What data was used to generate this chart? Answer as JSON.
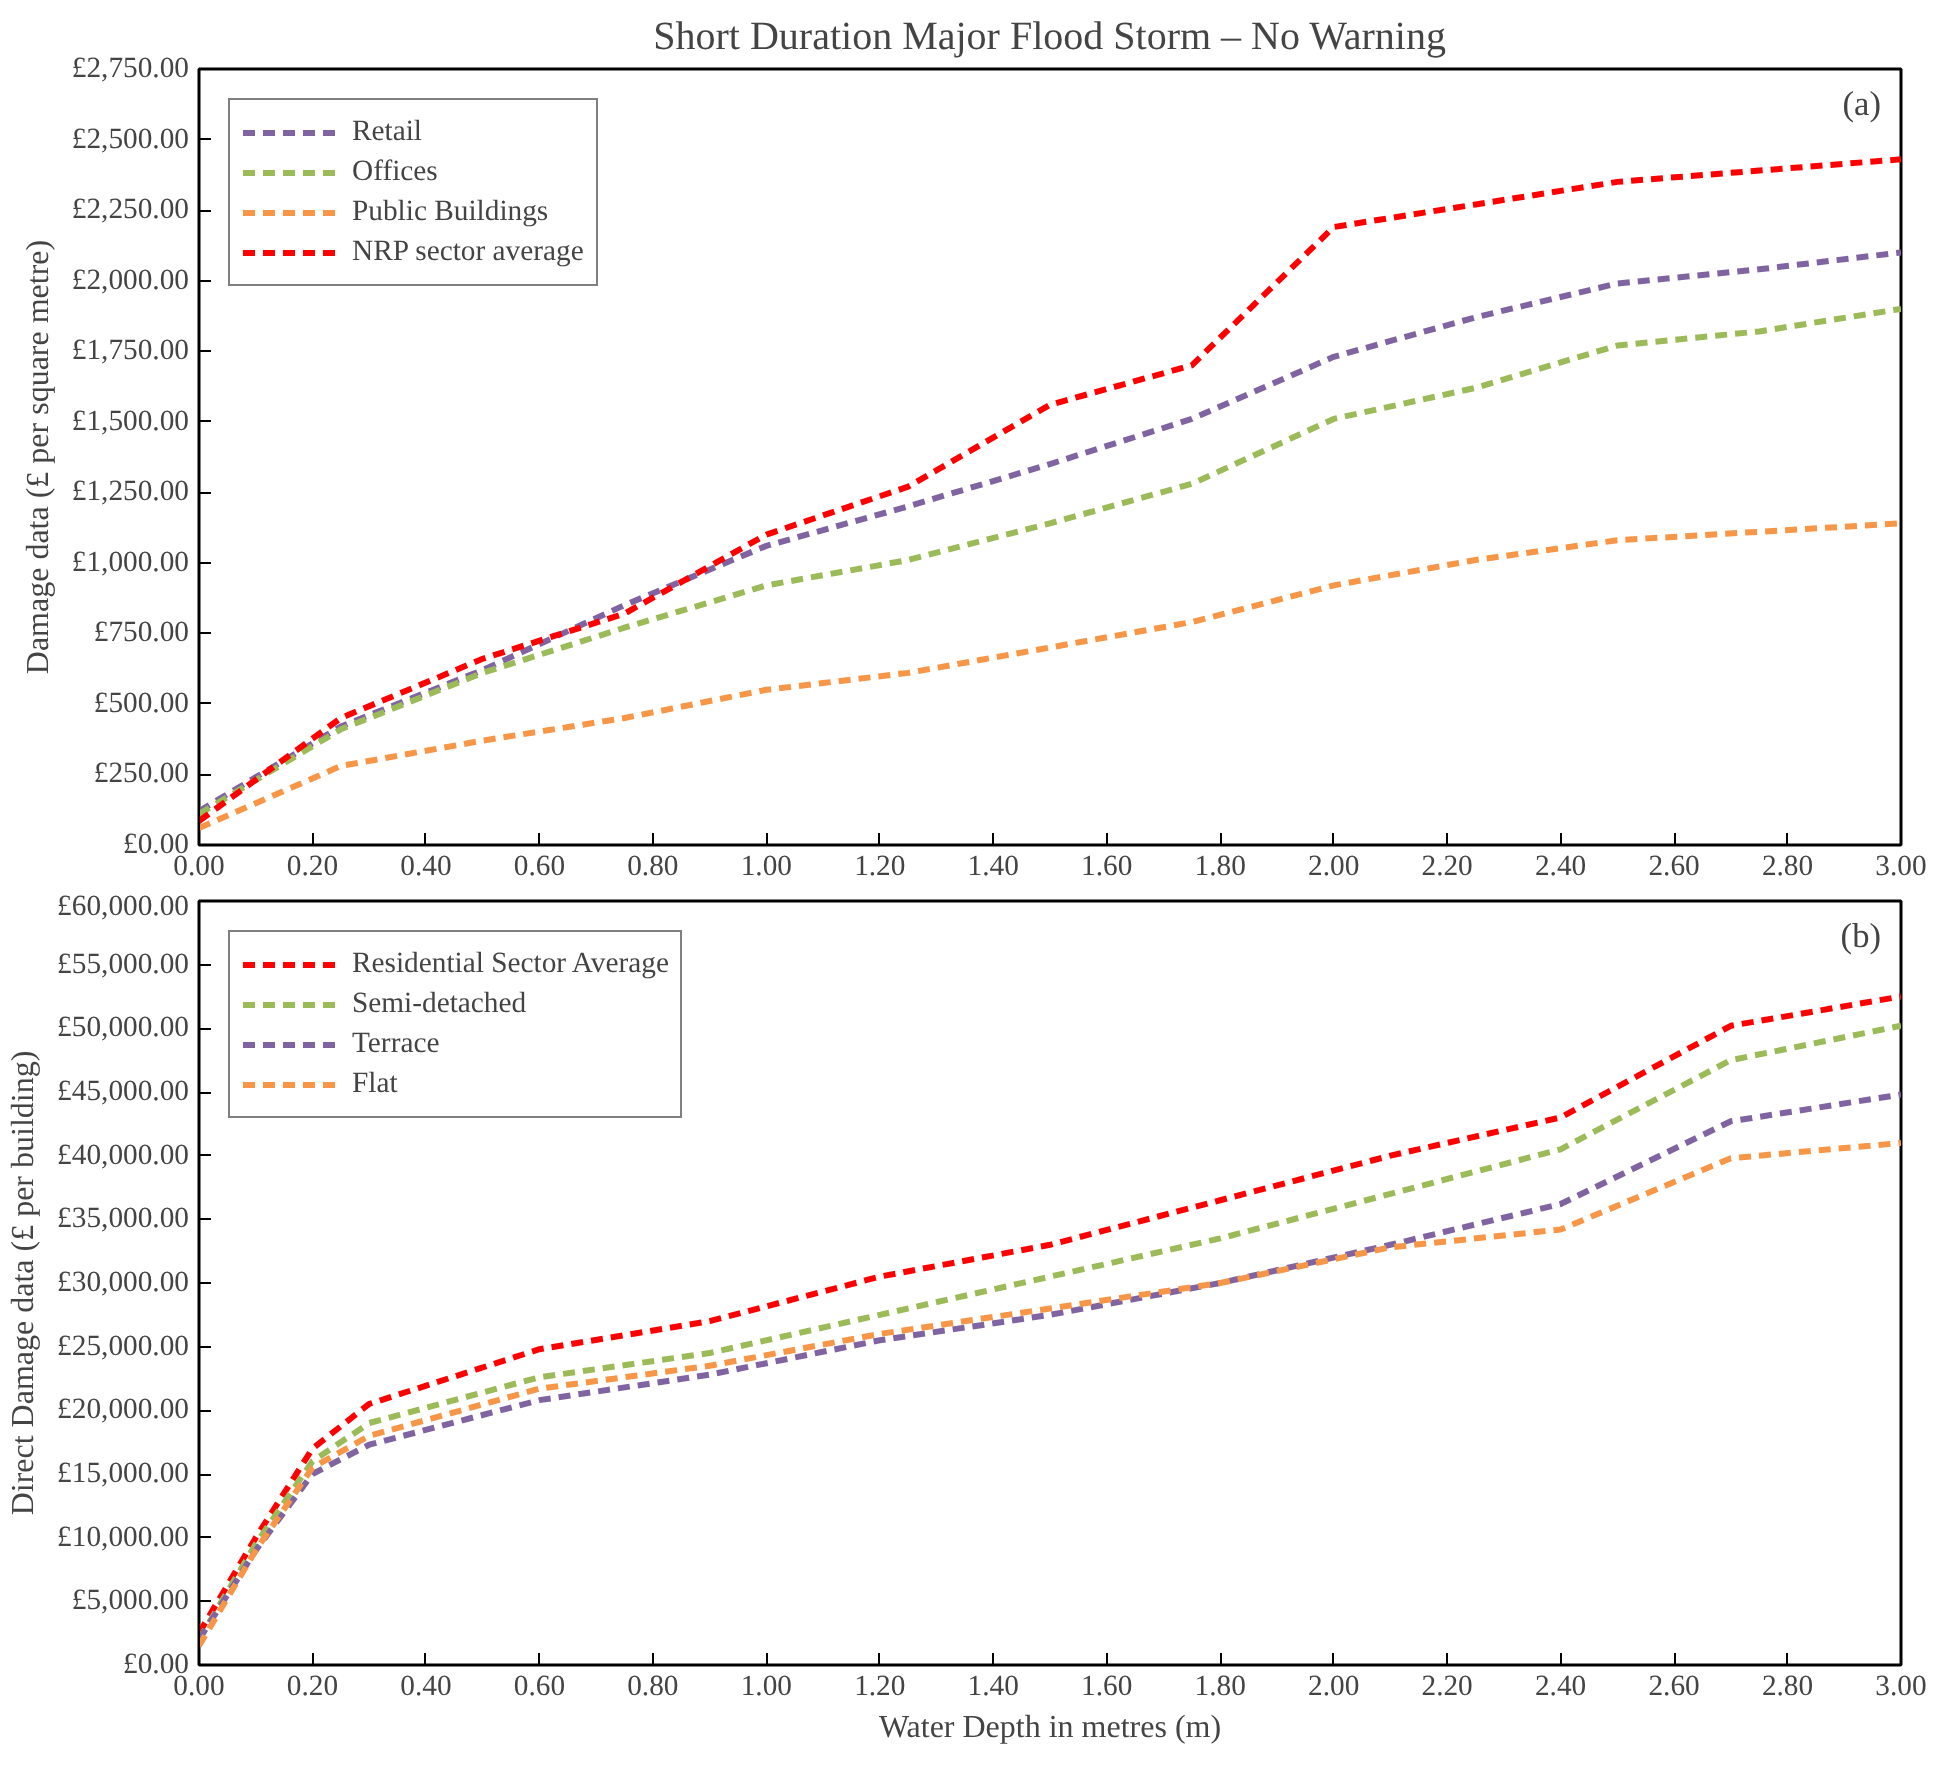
{
  "chart_data": [
    {
      "type": "line",
      "title": "Short Duration Major Flood Storm – No Warning",
      "ylabel": "Damage data (£ per square metre)",
      "annotations": [
        "(a)"
      ],
      "x": [
        0,
        0.25,
        0.5,
        0.75,
        1.0,
        1.25,
        1.5,
        1.75,
        2.0,
        2.25,
        2.5,
        2.75,
        3.0
      ],
      "series": [
        {
          "name": "Retail",
          "color": "#8064a2",
          "values": [
            120,
            420,
            620,
            850,
            1060,
            1200,
            1350,
            1510,
            1730,
            1870,
            1990,
            2040,
            2100
          ]
        },
        {
          "name": "Offices",
          "color": "#9bbb59",
          "values": [
            110,
            410,
            610,
            770,
            920,
            1010,
            1140,
            1280,
            1510,
            1620,
            1770,
            1820,
            1900
          ]
        },
        {
          "name": "Public Buildings",
          "color": "#f79646",
          "values": [
            60,
            280,
            370,
            450,
            550,
            610,
            700,
            790,
            920,
            1010,
            1080,
            1110,
            1140
          ]
        },
        {
          "name": "NRP sector average",
          "color": "#ff0000",
          "values": [
            85,
            450,
            660,
            820,
            1100,
            1270,
            1560,
            1700,
            2190,
            2270,
            2350,
            2390,
            2430
          ]
        }
      ],
      "xlim": [
        0,
        3
      ],
      "xticks": [
        {
          "value": 0,
          "label": "0.00"
        },
        {
          "value": 0.2,
          "label": "0.20"
        },
        {
          "value": 0.4,
          "label": "0.40"
        },
        {
          "value": 0.6,
          "label": "0.60"
        },
        {
          "value": 0.8,
          "label": "0.80"
        },
        {
          "value": 1.0,
          "label": "1.00"
        },
        {
          "value": 1.2,
          "label": "1.20"
        },
        {
          "value": 1.4,
          "label": "1.40"
        },
        {
          "value": 1.6,
          "label": "1.60"
        },
        {
          "value": 1.8,
          "label": "1.80"
        },
        {
          "value": 2.0,
          "label": "2.00"
        },
        {
          "value": 2.2,
          "label": "2.20"
        },
        {
          "value": 2.4,
          "label": "2.40"
        },
        {
          "value": 2.6,
          "label": "2.60"
        },
        {
          "value": 2.8,
          "label": "2.80"
        },
        {
          "value": 3.0,
          "label": "3.00"
        }
      ],
      "ylim": [
        0,
        2750
      ],
      "yticks": [
        {
          "value": 0,
          "label": "£0.00"
        },
        {
          "value": 250,
          "label": "£250.00"
        },
        {
          "value": 500,
          "label": "£500.00"
        },
        {
          "value": 750,
          "label": "£750.00"
        },
        {
          "value": 1000,
          "label": "£1,000.00"
        },
        {
          "value": 1250,
          "label": "£1,250.00"
        },
        {
          "value": 1500,
          "label": "£1,500.00"
        },
        {
          "value": 1750,
          "label": "£1,750.00"
        },
        {
          "value": 2000,
          "label": "£2,000.00"
        },
        {
          "value": 2250,
          "label": "£2,250.00"
        },
        {
          "value": 2500,
          "label": "£2,500.00"
        },
        {
          "value": 2750,
          "label": "£2,750.00"
        }
      ],
      "grid": false,
      "legend": "top left",
      "line_style": "dashed",
      "marker": "none"
    },
    {
      "type": "line",
      "xlabel": "Water Depth in metres (m)",
      "ylabel": "Direct Damage data (£ per building)",
      "annotations": [
        "(b)"
      ],
      "x": [
        0,
        0.1,
        0.2,
        0.3,
        0.6,
        0.9,
        1.2,
        1.5,
        1.8,
        2.1,
        2.4,
        2.7,
        3.0
      ],
      "series": [
        {
          "name": "Residential Sector Average",
          "color": "#ff0000",
          "values": [
            2500,
            10000,
            17000,
            20500,
            24800,
            27000,
            30500,
            33000,
            36500,
            40000,
            43000,
            50200,
            52500
          ]
        },
        {
          "name": "Semi-detached",
          "color": "#9bbb59",
          "values": [
            2000,
            9500,
            16000,
            19000,
            22600,
            24500,
            27500,
            30500,
            33500,
            37000,
            40500,
            47500,
            50200
          ]
        },
        {
          "name": "Terrace",
          "color": "#8064a2",
          "values": [
            2000,
            9000,
            15000,
            17300,
            20800,
            22800,
            25500,
            27500,
            30000,
            33000,
            36200,
            42700,
            44800
          ]
        },
        {
          "name": "Flat",
          "color": "#f79646",
          "values": [
            1500,
            9000,
            15500,
            18000,
            21700,
            23500,
            26000,
            28000,
            30000,
            32800,
            34200,
            39800,
            41000
          ]
        }
      ],
      "xlim": [
        0,
        3
      ],
      "xticks": [
        {
          "value": 0,
          "label": "0.00"
        },
        {
          "value": 0.2,
          "label": "0.20"
        },
        {
          "value": 0.4,
          "label": "0.40"
        },
        {
          "value": 0.6,
          "label": "0.60"
        },
        {
          "value": 0.8,
          "label": "0.80"
        },
        {
          "value": 1.0,
          "label": "1.00"
        },
        {
          "value": 1.2,
          "label": "1.20"
        },
        {
          "value": 1.4,
          "label": "1.40"
        },
        {
          "value": 1.6,
          "label": "1.60"
        },
        {
          "value": 1.8,
          "label": "1.80"
        },
        {
          "value": 2.0,
          "label": "2.00"
        },
        {
          "value": 2.2,
          "label": "2.20"
        },
        {
          "value": 2.4,
          "label": "2.40"
        },
        {
          "value": 2.6,
          "label": "2.60"
        },
        {
          "value": 2.8,
          "label": "2.80"
        },
        {
          "value": 3.0,
          "label": "3.00"
        }
      ],
      "ylim": [
        0,
        60000
      ],
      "yticks": [
        {
          "value": 0,
          "label": "£0.00"
        },
        {
          "value": 5000,
          "label": "£5,000.00"
        },
        {
          "value": 10000,
          "label": "£10,000.00"
        },
        {
          "value": 15000,
          "label": "£15,000.00"
        },
        {
          "value": 20000,
          "label": "£20,000.00"
        },
        {
          "value": 25000,
          "label": "£25,000.00"
        },
        {
          "value": 30000,
          "label": "£30,000.00"
        },
        {
          "value": 35000,
          "label": "£35,000.00"
        },
        {
          "value": 40000,
          "label": "£40,000.00"
        },
        {
          "value": 45000,
          "label": "£45,000.00"
        },
        {
          "value": 50000,
          "label": "£50,000.00"
        },
        {
          "value": 55000,
          "label": "£55,000.00"
        },
        {
          "value": 60000,
          "label": "£60,000.00"
        }
      ],
      "grid": false,
      "legend": "top left",
      "line_style": "dashed",
      "marker": "none"
    }
  ]
}
